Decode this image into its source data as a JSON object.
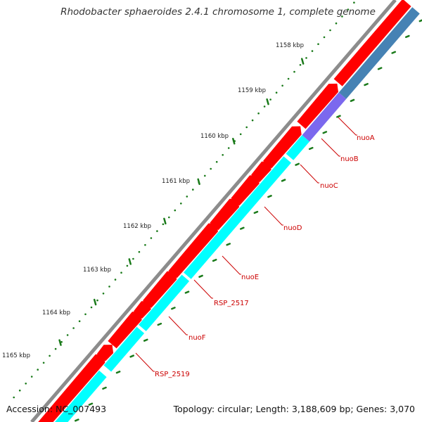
{
  "title": "Rhodobacter sphaeroides 2.4.1 chromosome 1, complete genome",
  "footer": {
    "accession": "Accession: NC_007493",
    "summary": "Topology: circular; Length: 3,188,609 bp; Genes: 3,070"
  },
  "scale_labels": [
    "1158 kbp",
    "1159 kbp",
    "1160 kbp",
    "1161 kbp",
    "1162 kbp",
    "1163 kbp",
    "1164 kbp",
    "1165 kbp"
  ],
  "gene_labels": [
    "nuoA",
    "nuoB",
    "nuoC",
    "nuoD",
    "nuoE",
    "RSP_2517",
    "nuoF",
    "RSP_2519"
  ],
  "colors": {
    "backbone": "#8c8c8c",
    "forward_gene": "#ff0000",
    "cds_feature": "#00ffff",
    "other_feature": "#7b68ee",
    "steel_feature": "#4682b4",
    "tick": "#1a7a1a",
    "label": "#cc0000"
  }
}
